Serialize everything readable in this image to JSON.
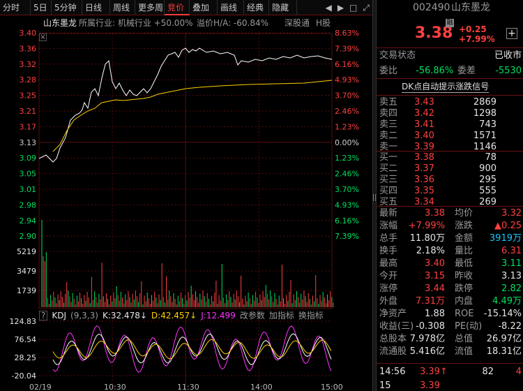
{
  "toolbar": {
    "tabs": [
      "分时",
      "5日",
      "5分钟",
      "日线",
      "周线",
      "更多周",
      "竞价",
      "叠加",
      "画线",
      "经典",
      "隐藏"
    ],
    "active": 6,
    "icons": [
      "◀",
      "▶",
      "□",
      "⤢"
    ]
  },
  "info_bar": {
    "stock_name": "山东墨龙",
    "industry": "所属行业: 机械行业 +50.00%",
    "ratio": "溢价H/A: -60.84%",
    "channel1": "深股通",
    "channel2": "H股"
  },
  "price_axis": {
    "left": [
      "3.40",
      "3.36",
      "3.32",
      "3.28",
      "3.25",
      "3.21",
      "3.17",
      "3.13",
      "3.09",
      "3.05",
      "3.01",
      "2.98",
      "2.94",
      "2.90"
    ],
    "right": [
      "8.63%",
      "7.39%",
      "6.16%",
      "4.93%",
      "3.70%",
      "2.46%",
      "1.23%",
      "0.00%",
      "1.23%",
      "2.46%",
      "3.70%",
      "4.93%",
      "6.16%",
      "7.39%"
    ]
  },
  "volume_axis": [
    "5219",
    "3479",
    "1739"
  ],
  "kdj_bar": {
    "help": "?",
    "name": "KDJ",
    "params": "(9,3,3)",
    "k": "K:32.478↓",
    "d": "D:42.457↓",
    "j": "J:12.499",
    "btn1": "改参数",
    "btn2": "加指标",
    "btn3": "换指标"
  },
  "kdj_axis": [
    "124.83",
    "76.54",
    "28.25",
    "-20.04"
  ],
  "time_axis": [
    "02/19",
    "10:30",
    "11:30",
    "14:00",
    "15:00"
  ],
  "header": {
    "code": "002490",
    "name": "山东墨龙",
    "price": "3.38",
    "tag": "融",
    "change": "+0.25",
    "pct": "+7.99%",
    "plus": "+"
  },
  "status": {
    "label": "交易状态",
    "value": "已收市"
  },
  "ratio_row": {
    "wb_label": "委比",
    "wb": "-56.86%",
    "wc_label": "委差",
    "wc": "-5530"
  },
  "signal": "DK点自动提示涨跌信号",
  "asks": [
    {
      "label": "卖五",
      "price": "3.43",
      "vol": "2869"
    },
    {
      "label": "卖四",
      "price": "3.42",
      "vol": "1298"
    },
    {
      "label": "卖三",
      "price": "3.41",
      "vol": "743"
    },
    {
      "label": "卖二",
      "price": "3.40",
      "vol": "1571"
    },
    {
      "label": "卖一",
      "price": "3.39",
      "vol": "1146"
    }
  ],
  "bids": [
    {
      "label": "买一",
      "price": "3.38",
      "vol": "78"
    },
    {
      "label": "买二",
      "price": "3.37",
      "vol": "900"
    },
    {
      "label": "买三",
      "price": "3.36",
      "vol": "295"
    },
    {
      "label": "买四",
      "price": "3.35",
      "vol": "555"
    },
    {
      "label": "买五",
      "price": "3.34",
      "vol": "269"
    }
  ],
  "quote": [
    {
      "l1": "最新",
      "v1": "3.38",
      "c1": "red",
      "l2": "均价",
      "v2": "3.32",
      "c2": "red"
    },
    {
      "l1": "涨幅",
      "v1": "+7.99%",
      "c1": "red",
      "l2": "涨跌",
      "v2": "▲0.25",
      "c2": "red"
    },
    {
      "l1": "总手",
      "v1": "11.80万",
      "c1": "white",
      "l2": "金额",
      "v2": "3919万",
      "c2": "cyan"
    },
    {
      "l1": "换手",
      "v1": "2.18%",
      "c1": "white",
      "l2": "量比",
      "v2": "6.31",
      "c2": "red"
    },
    {
      "l1": "最高",
      "v1": "3.40",
      "c1": "red",
      "l2": "最低",
      "v2": "3.11",
      "c2": "green"
    },
    {
      "l1": "今开",
      "v1": "3.15",
      "c1": "red",
      "l2": "昨收",
      "v2": "3.13",
      "c2": "white"
    },
    {
      "l1": "涨停",
      "v1": "3.44",
      "c1": "red",
      "l2": "跌停",
      "v2": "2.82",
      "c2": "green"
    },
    {
      "l1": "外盘",
      "v1": "7.31万",
      "c1": "red",
      "l2": "内盘",
      "v2": "4.49万",
      "c2": "green"
    },
    {
      "l1": "净资产",
      "v1": "1.88",
      "c1": "white",
      "l2": "ROE",
      "v2": "-15.14%",
      "c2": "white"
    },
    {
      "l1": "收益(三)",
      "v1": "-0.308",
      "c1": "white",
      "l2": "PE(动)",
      "v2": "-8.22",
      "c2": "white"
    },
    {
      "l1": "总股本",
      "v1": "7.978亿",
      "c1": "white",
      "l2": "总值",
      "v2": "26.97亿",
      "c2": "white"
    },
    {
      "l1": "流通股",
      "v1": "5.416亿",
      "c1": "white",
      "l2": "流值",
      "v2": "18.31亿",
      "c2": "white"
    }
  ],
  "ticks": [
    {
      "time": "14:56",
      "price": "3.39",
      "arrow": "↑",
      "vol": "82",
      "num": "4"
    },
    {
      "time": "15",
      "price": "3.39",
      "arrow": "",
      "vol": "",
      "num": ""
    }
  ],
  "colors": {
    "up": "#ff4040",
    "down": "#00e060",
    "price_line": "#ffffff",
    "avg_line": "#ffd000",
    "k": "#ffffff",
    "d": "#ffd000",
    "j": "#ff33ff",
    "grid": "#5a0c0c"
  }
}
